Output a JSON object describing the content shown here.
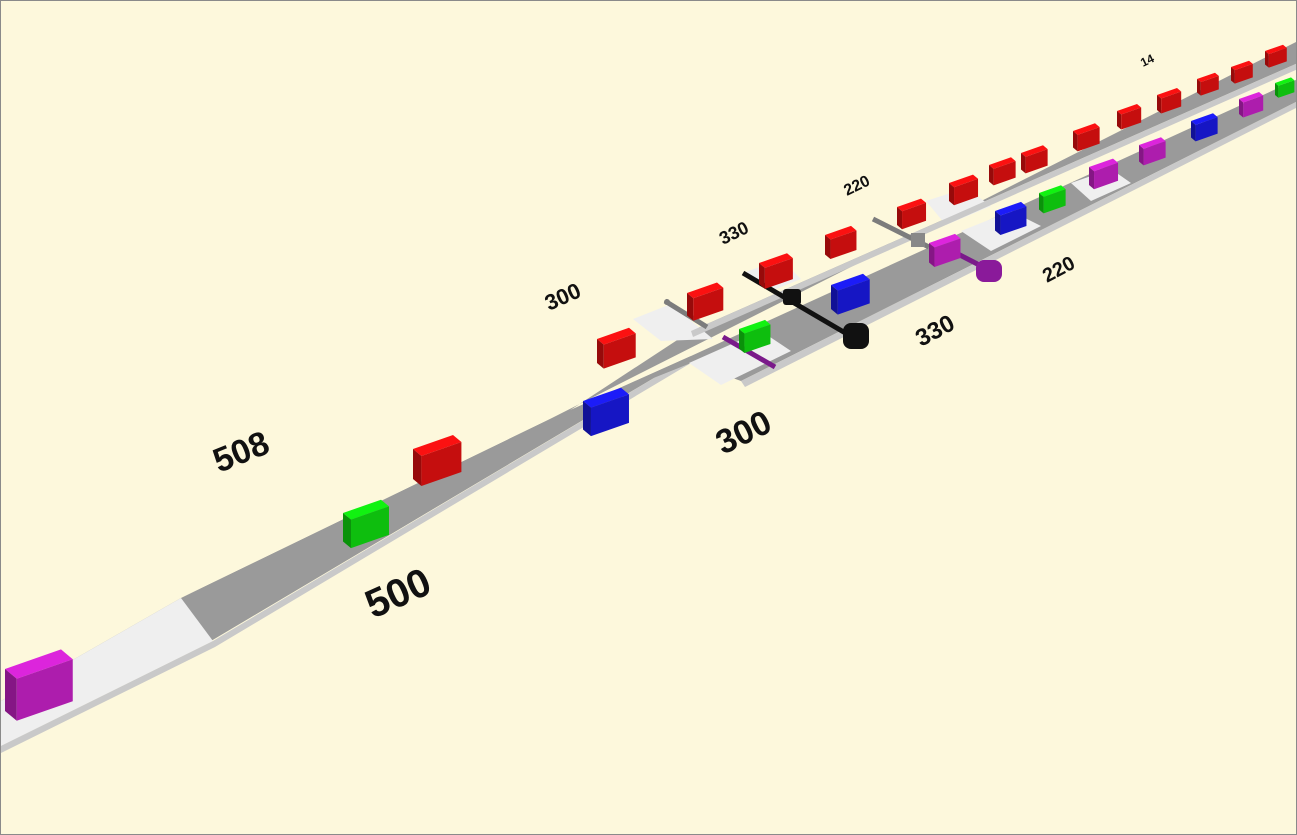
{
  "scene": {
    "background": "#fdf8dc",
    "road_color": "#9a9a9a",
    "road_edge_color": "#d9d9d9",
    "segment_light_color": "#efefef",
    "labels": {
      "main_left": "508",
      "main_right": "500",
      "upper_left_1": "300",
      "upper_left_2": "330",
      "upper_left_3": "220",
      "upper_left_far": "14",
      "lower_right_1": "300",
      "lower_right_2": "330",
      "lower_right_3": "220"
    },
    "vehicle_colors": {
      "red": "#e81010",
      "green": "#10e010",
      "blue": "#1a1ae6",
      "magenta": "#cc22cc",
      "gray": "#808080",
      "black": "#111111",
      "purple": "#7a1a8a"
    }
  }
}
